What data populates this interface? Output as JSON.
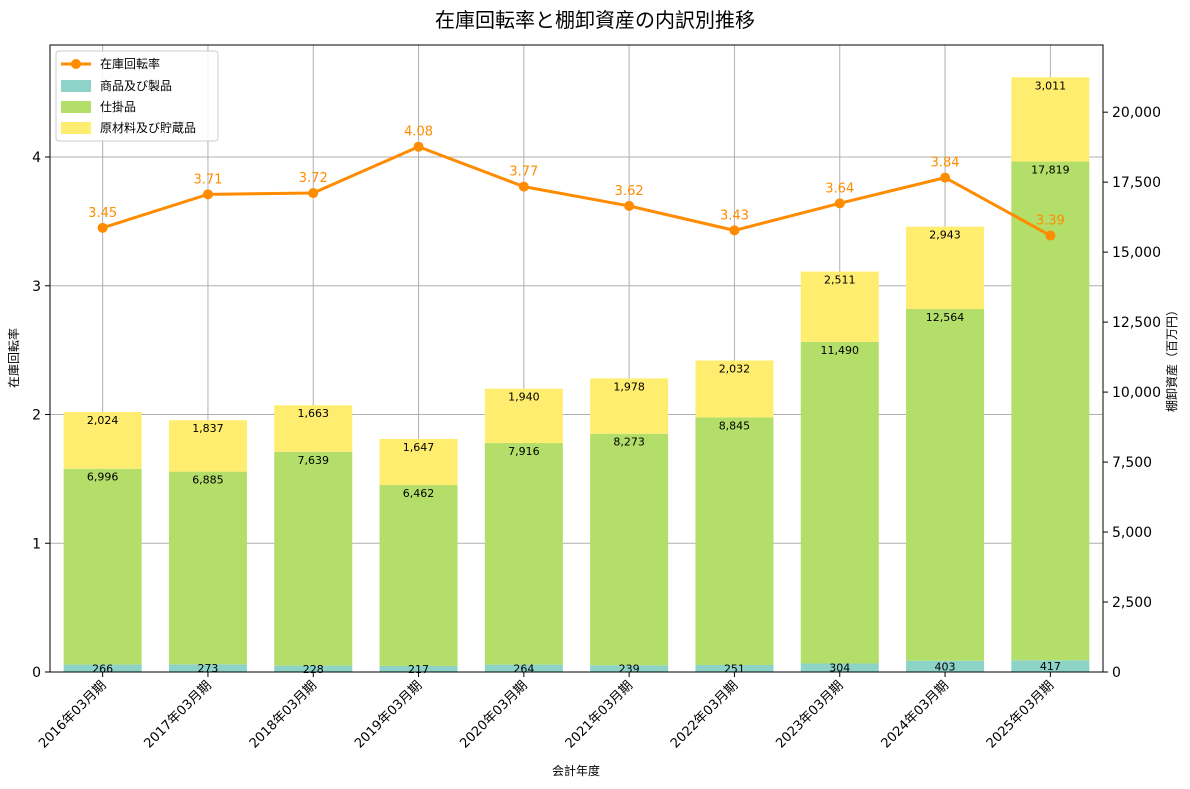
{
  "chart_data": {
    "type": "bar+line",
    "title": "在庫回転率と棚卸資産の内訳別推移",
    "xlabel": "会計年度",
    "ylabel_left": "在庫回転率",
    "ylabel_right": "棚卸資産（百万円）",
    "categories": [
      "2016年03月期",
      "2017年03月期",
      "2018年03月期",
      "2019年03月期",
      "2020年03月期",
      "2021年03月期",
      "2022年03月期",
      "2023年03月期",
      "2024年03月期",
      "2025年03月期"
    ],
    "bar_series": [
      {
        "name": "商品及び製品",
        "color": "#8dd3c7",
        "values": [
          266,
          273,
          228,
          217,
          264,
          239,
          251,
          304,
          403,
          417
        ],
        "labels": [
          "266",
          "273",
          "228",
          "217",
          "264",
          "239",
          "251",
          "304",
          "403",
          "417"
        ]
      },
      {
        "name": "仕掛品",
        "color": "#b3de69",
        "values": [
          6996,
          6885,
          7639,
          6462,
          7916,
          8273,
          8845,
          11490,
          12564,
          17819
        ],
        "labels": [
          "6,996",
          "6,885",
          "7,639",
          "6,462",
          "7,916",
          "8,273",
          "8,845",
          "11,490",
          "12,564",
          "17,819"
        ]
      },
      {
        "name": "原材料及び貯蔵品",
        "color": "#ffed6f",
        "values": [
          2024,
          1837,
          1663,
          1647,
          1940,
          1978,
          2032,
          2511,
          2943,
          3011
        ],
        "labels": [
          "2,024",
          "1,837",
          "1,663",
          "1,647",
          "1,940",
          "1,978",
          "2,032",
          "2,511",
          "2,943",
          "3,011"
        ]
      }
    ],
    "line_series": {
      "name": "在庫回転率",
      "color": "#ff8c00",
      "values": [
        3.45,
        3.71,
        3.72,
        4.08,
        3.77,
        3.62,
        3.43,
        3.64,
        3.84,
        3.39
      ],
      "labels": [
        "3.45",
        "3.71",
        "3.72",
        "4.08",
        "3.77",
        "3.62",
        "3.43",
        "3.64",
        "3.84",
        "3.39"
      ]
    },
    "ylim_left": [
      0,
      4.87
    ],
    "ylim_right": [
      0,
      22400
    ],
    "yticks_left": [
      0,
      1,
      2,
      3,
      4
    ],
    "yticks_left_labels": [
      "0",
      "1",
      "2",
      "3",
      "4"
    ],
    "yticks_right": [
      0,
      2500,
      5000,
      7500,
      10000,
      12500,
      15000,
      17500,
      20000
    ],
    "yticks_right_labels": [
      "0",
      "2,500",
      "5,000",
      "7,500",
      "10,000",
      "12,500",
      "15,000",
      "17,500",
      "20,000"
    ],
    "grid": true,
    "legend_position": "top-left"
  }
}
